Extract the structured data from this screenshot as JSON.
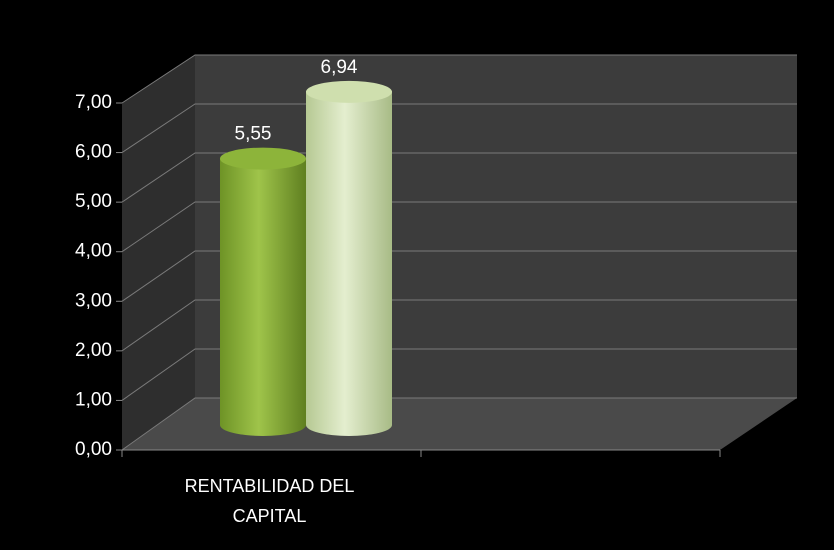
{
  "chart_data": {
    "type": "bar3d",
    "categories": [
      "RENTABILIDAD DEL CAPITAL",
      null
    ],
    "series": [
      {
        "color": "#8db43a",
        "values": [
          5.55,
          null
        ],
        "value_labels": [
          "5,55",
          null
        ]
      },
      {
        "color": "#cfdfae",
        "values": [
          6.94,
          null
        ],
        "value_labels": [
          "6,94",
          null
        ]
      }
    ],
    "ylim": [
      0,
      7
    ],
    "yticks": [
      {
        "value": 0,
        "label": "0,00"
      },
      {
        "value": 1,
        "label": "1,00"
      },
      {
        "value": 2,
        "label": "2,00"
      },
      {
        "value": 3,
        "label": "3,00"
      },
      {
        "value": 4,
        "label": "4,00"
      },
      {
        "value": 5,
        "label": "5,00"
      },
      {
        "value": 6,
        "label": "6,00"
      },
      {
        "value": 7,
        "label": "7,00"
      }
    ],
    "grid": true
  }
}
